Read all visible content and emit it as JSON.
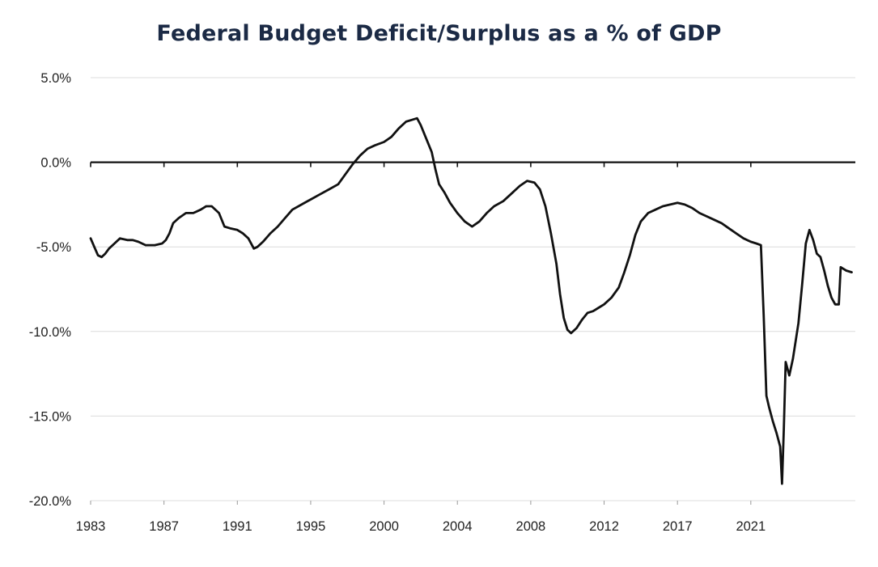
{
  "chart_data": {
    "type": "line",
    "title": "Federal Budget Deficit/Surplus as a % of GDP",
    "xlabel": "",
    "ylabel": "",
    "xlim": [
      1983,
      2024.7
    ],
    "ylim": [
      -20,
      5
    ],
    "grid": true,
    "y_ticks": [
      5,
      0,
      -5,
      -10,
      -15,
      -20
    ],
    "y_tick_labels": [
      "5.0%",
      "0.0%",
      "-5.0%",
      "-10.0%",
      "-15.0%",
      "-20.0%"
    ],
    "x_tick_labels": [
      "1983",
      "1987",
      "1991",
      "1995",
      "2000",
      "2004",
      "2008",
      "2012",
      "2017",
      "2021"
    ],
    "x_tick_positions": [
      1983,
      1987,
      1991,
      1995,
      1999,
      2003,
      2007,
      2011,
      2015,
      2019
    ],
    "zero_line": 0,
    "series": [
      {
        "color": "#111111",
        "points": [
          [
            1983.0,
            -4.5
          ],
          [
            1983.2,
            -5.0
          ],
          [
            1983.4,
            -5.5
          ],
          [
            1983.6,
            -5.6
          ],
          [
            1983.8,
            -5.4
          ],
          [
            1984.0,
            -5.1
          ],
          [
            1984.3,
            -4.8
          ],
          [
            1984.6,
            -4.5
          ],
          [
            1985.0,
            -4.6
          ],
          [
            1985.3,
            -4.6
          ],
          [
            1985.6,
            -4.7
          ],
          [
            1986.0,
            -4.9
          ],
          [
            1986.5,
            -4.9
          ],
          [
            1986.9,
            -4.8
          ],
          [
            1987.1,
            -4.6
          ],
          [
            1987.3,
            -4.2
          ],
          [
            1987.5,
            -3.6
          ],
          [
            1987.8,
            -3.3
          ],
          [
            1988.2,
            -3.0
          ],
          [
            1988.6,
            -3.0
          ],
          [
            1989.0,
            -2.8
          ],
          [
            1989.3,
            -2.6
          ],
          [
            1989.6,
            -2.6
          ],
          [
            1990.0,
            -3.0
          ],
          [
            1990.3,
            -3.8
          ],
          [
            1990.6,
            -3.9
          ],
          [
            1991.0,
            -4.0
          ],
          [
            1991.3,
            -4.2
          ],
          [
            1991.6,
            -4.5
          ],
          [
            1991.9,
            -5.1
          ],
          [
            1992.1,
            -5.0
          ],
          [
            1992.4,
            -4.7
          ],
          [
            1992.8,
            -4.2
          ],
          [
            1993.2,
            -3.8
          ],
          [
            1993.6,
            -3.3
          ],
          [
            1994.0,
            -2.8
          ],
          [
            1994.5,
            -2.5
          ],
          [
            1995.0,
            -2.2
          ],
          [
            1995.5,
            -1.9
          ],
          [
            1996.0,
            -1.6
          ],
          [
            1996.5,
            -1.3
          ],
          [
            1996.9,
            -0.7
          ],
          [
            1997.3,
            -0.1
          ],
          [
            1997.7,
            0.4
          ],
          [
            1998.1,
            0.8
          ],
          [
            1998.5,
            1.0
          ],
          [
            1999.0,
            1.2
          ],
          [
            1999.4,
            1.5
          ],
          [
            1999.8,
            2.0
          ],
          [
            2000.2,
            2.4
          ],
          [
            2000.5,
            2.5
          ],
          [
            2000.8,
            2.6
          ],
          [
            2001.0,
            2.2
          ],
          [
            2001.3,
            1.4
          ],
          [
            2001.6,
            0.6
          ],
          [
            2001.8,
            -0.4
          ],
          [
            2002.0,
            -1.3
          ],
          [
            2002.3,
            -1.8
          ],
          [
            2002.6,
            -2.4
          ],
          [
            2003.0,
            -3.0
          ],
          [
            2003.4,
            -3.5
          ],
          [
            2003.8,
            -3.8
          ],
          [
            2004.2,
            -3.5
          ],
          [
            2004.6,
            -3.0
          ],
          [
            2005.0,
            -2.6
          ],
          [
            2005.5,
            -2.3
          ],
          [
            2006.0,
            -1.8
          ],
          [
            2006.4,
            -1.4
          ],
          [
            2006.8,
            -1.1
          ],
          [
            2007.2,
            -1.2
          ],
          [
            2007.5,
            -1.6
          ],
          [
            2007.8,
            -2.6
          ],
          [
            2008.1,
            -4.2
          ],
          [
            2008.4,
            -6.0
          ],
          [
            2008.6,
            -7.8
          ],
          [
            2008.8,
            -9.2
          ],
          [
            2009.0,
            -9.9
          ],
          [
            2009.2,
            -10.1
          ],
          [
            2009.5,
            -9.8
          ],
          [
            2009.8,
            -9.3
          ],
          [
            2010.1,
            -8.9
          ],
          [
            2010.4,
            -8.8
          ],
          [
            2010.7,
            -8.6
          ],
          [
            2011.0,
            -8.4
          ],
          [
            2011.4,
            -8.0
          ],
          [
            2011.8,
            -7.4
          ],
          [
            2012.1,
            -6.5
          ],
          [
            2012.4,
            -5.5
          ],
          [
            2012.7,
            -4.3
          ],
          [
            2013.0,
            -3.5
          ],
          [
            2013.4,
            -3.0
          ],
          [
            2013.8,
            -2.8
          ],
          [
            2014.2,
            -2.6
          ],
          [
            2014.6,
            -2.5
          ],
          [
            2015.0,
            -2.4
          ],
          [
            2015.4,
            -2.5
          ],
          [
            2015.8,
            -2.7
          ],
          [
            2016.2,
            -3.0
          ],
          [
            2016.6,
            -3.2
          ],
          [
            2017.0,
            -3.4
          ],
          [
            2017.4,
            -3.6
          ],
          [
            2017.8,
            -3.9
          ],
          [
            2018.2,
            -4.2
          ],
          [
            2018.6,
            -4.5
          ],
          [
            2019.0,
            -4.7
          ],
          [
            2019.3,
            -4.8
          ],
          [
            2019.55,
            -4.9
          ],
          [
            2019.7,
            -9.0
          ],
          [
            2019.85,
            -13.8
          ],
          [
            2020.0,
            -14.5
          ],
          [
            2020.2,
            -15.3
          ],
          [
            2020.4,
            -16.0
          ],
          [
            2020.6,
            -16.8
          ],
          [
            2020.7,
            -19.0
          ],
          [
            2020.8,
            -15.8
          ],
          [
            2020.9,
            -11.8
          ],
          [
            2021.1,
            -12.6
          ],
          [
            2021.3,
            -11.6
          ],
          [
            2021.6,
            -9.5
          ],
          [
            2021.8,
            -7.2
          ],
          [
            2022.0,
            -4.8
          ],
          [
            2022.2,
            -4.0
          ],
          [
            2022.4,
            -4.6
          ],
          [
            2022.6,
            -5.4
          ],
          [
            2022.8,
            -5.6
          ],
          [
            2023.0,
            -6.4
          ],
          [
            2023.2,
            -7.3
          ],
          [
            2023.4,
            -8.0
          ],
          [
            2023.6,
            -8.4
          ],
          [
            2023.8,
            -8.4
          ],
          [
            2023.9,
            -6.2
          ],
          [
            2024.2,
            -6.4
          ],
          [
            2024.5,
            -6.5
          ]
        ]
      }
    ]
  }
}
